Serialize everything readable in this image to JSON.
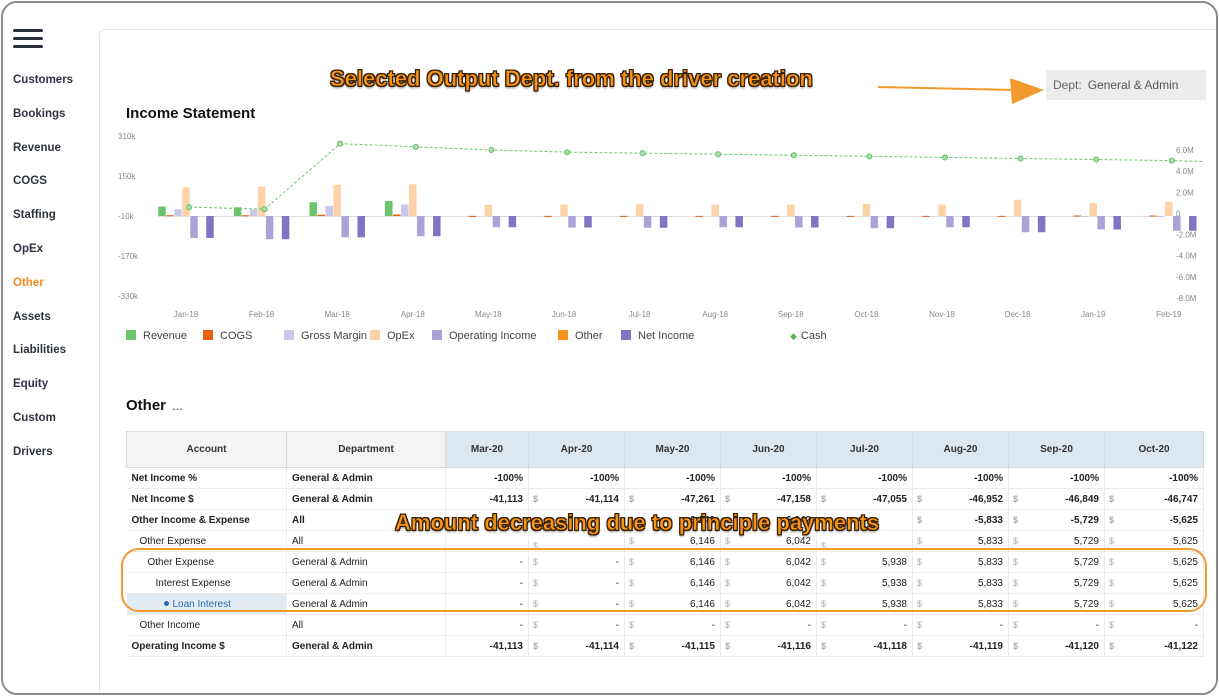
{
  "sidebar": {
    "menu_icon": "hamburger-menu-icon",
    "items": [
      {
        "label": "Customers"
      },
      {
        "label": "Bookings"
      },
      {
        "label": "Revenue"
      },
      {
        "label": "COGS"
      },
      {
        "label": "Staffing"
      },
      {
        "label": "OpEx"
      },
      {
        "label": "Other",
        "active": true
      },
      {
        "label": "Assets"
      },
      {
        "label": "Liabilities"
      },
      {
        "label": "Equity"
      },
      {
        "label": "Custom"
      },
      {
        "label": "Drivers"
      }
    ],
    "active_color": "#f28a1e"
  },
  "dept_selector": {
    "label": "Dept:",
    "value": "General & Admin"
  },
  "annotations": {
    "top": "Selected Output Dept. from the driver creation",
    "middle": "Amount decreasing due to principle payments"
  },
  "income_statement": {
    "title": "Income Statement"
  },
  "chart_data": {
    "type": "bar",
    "categories": [
      "Jan-18",
      "Feb-18",
      "Mar-18",
      "Apr-18",
      "May-18",
      "Jun-18",
      "Jul-18",
      "Aug-18",
      "Sep-18",
      "Oct-18",
      "Nov-18",
      "Dec-18",
      "Jan-19",
      "Feb-19"
    ],
    "left_ticks": [
      "310k",
      "150k",
      "-10k",
      "-170k",
      "-330k"
    ],
    "left_range": [
      -330,
      310
    ],
    "right_ticks": [
      "6.0M",
      "4.0M",
      "2.0M",
      "0",
      "-2.0M",
      "-4.0M",
      "-6.0M",
      "-8.0M"
    ],
    "right_range": [
      -8.0,
      6.0
    ],
    "series": [
      {
        "name": "Revenue",
        "color": "#6cc46c",
        "values": [
          38,
          35,
          55,
          60,
          0,
          0,
          0,
          0,
          0,
          0,
          0,
          0,
          0,
          0
        ]
      },
      {
        "name": "COGS",
        "color": "#e8620f",
        "values": [
          3,
          3,
          5,
          6,
          0.5,
          0.5,
          0.5,
          0.5,
          0.5,
          0.5,
          0.5,
          0.5,
          2,
          2
        ]
      },
      {
        "name": "Gross Margin",
        "color": "#c9c7ea",
        "values": [
          27,
          25,
          40,
          46,
          0,
          0,
          0,
          0,
          0,
          0,
          0,
          0,
          -2,
          -2
        ]
      },
      {
        "name": "OpEx",
        "color": "#fdd2a6",
        "values": [
          115,
          118,
          125,
          127,
          45,
          46,
          47,
          45,
          46,
          49,
          45,
          65,
          52,
          57
        ]
      },
      {
        "name": "Operating Income",
        "color": "#a8a4d8",
        "values": [
          -88,
          -93,
          -85,
          -81,
          -45,
          -46,
          -47,
          -45,
          -46,
          -49,
          -45,
          -65,
          -54,
          -59
        ]
      },
      {
        "name": "Other",
        "color": "#f7941e",
        "values": [
          0,
          0,
          0,
          0,
          0,
          0,
          0,
          0,
          0,
          0,
          0,
          0,
          0,
          0
        ]
      },
      {
        "name": "Net Income",
        "color": "#7e76c2",
        "values": [
          -88,
          -93,
          -85,
          -81,
          -45,
          -46,
          -47,
          -45,
          -46,
          -49,
          -45,
          -65,
          -54,
          -59
        ]
      }
    ],
    "line_series": {
      "name": "Cash",
      "color": "#6cc46c",
      "values": [
        0.6,
        0.4,
        6.6,
        6.3,
        6.0,
        5.8,
        5.7,
        5.6,
        5.5,
        5.4,
        5.3,
        5.2,
        5.1,
        5.0
      ]
    }
  },
  "other_section": {
    "title": "Other",
    "ellipsis": "..."
  },
  "table": {
    "headers": {
      "account": "Account",
      "department": "Department",
      "months": [
        "Mar-20",
        "Apr-20",
        "May-20",
        "Jun-20",
        "Jul-20",
        "Aug-20",
        "Sep-20",
        "Oct-20"
      ]
    },
    "rows": [
      {
        "account": "Net Income %",
        "indent": 0,
        "bold": true,
        "department": "General & Admin",
        "values": [
          "-100%",
          "-100%",
          "-100%",
          "-100%",
          "-100%",
          "-100%",
          "-100%",
          "-100%"
        ],
        "currency": false
      },
      {
        "account": "Net Income $",
        "indent": 0,
        "bold": true,
        "department": "General & Admin",
        "values": [
          "-41,113",
          "-41,114",
          "-47,261",
          "-47,158",
          "-47,055",
          "-46,952",
          "-46,849",
          "-46,747"
        ],
        "currency": true
      },
      {
        "account": "Other Income & Expense",
        "indent": 0,
        "bold": true,
        "department": "All",
        "values": [
          "",
          "",
          "6,146",
          "6,042",
          "",
          "-5,833",
          "-5,729",
          "-5,625"
        ],
        "currency": true
      },
      {
        "account": "Other Expense",
        "indent": 1,
        "bold": false,
        "department": "All",
        "values": [
          "",
          "",
          "6,146",
          "6,042",
          "",
          "5,833",
          "5,729",
          "5,625"
        ],
        "currency": true
      },
      {
        "account": "Other Expense",
        "indent": 2,
        "bold": false,
        "department": "General & Admin",
        "values": [
          "-",
          "-",
          "6,146",
          "6,042",
          "5,938",
          "5,833",
          "5,729",
          "5,625"
        ],
        "currency": true
      },
      {
        "account": "Interest Expense",
        "indent": 3,
        "bold": false,
        "department": "General & Admin",
        "values": [
          "-",
          "-",
          "6,146",
          "6,042",
          "5,938",
          "5,833",
          "5,729",
          "5,625"
        ],
        "currency": true
      },
      {
        "account": "Loan Interest",
        "indent": 4,
        "bold": false,
        "highlight": true,
        "department": "General & Admin",
        "values": [
          "-",
          "-",
          "6,146",
          "6,042",
          "5,938",
          "5,833",
          "5,729",
          "5,625"
        ],
        "currency": true
      },
      {
        "account": "Other Income",
        "indent": 1,
        "bold": false,
        "department": "All",
        "values": [
          "-",
          "-",
          "-",
          "-",
          "-",
          "-",
          "-",
          "-"
        ],
        "currency": true
      },
      {
        "account": "Operating Income $",
        "indent": 0,
        "bold": true,
        "department": "General & Admin",
        "values": [
          "-41,113",
          "-41,114",
          "-41,115",
          "-41,116",
          "-41,118",
          "-41,119",
          "-41,120",
          "-41,122"
        ],
        "currency": true
      }
    ]
  }
}
